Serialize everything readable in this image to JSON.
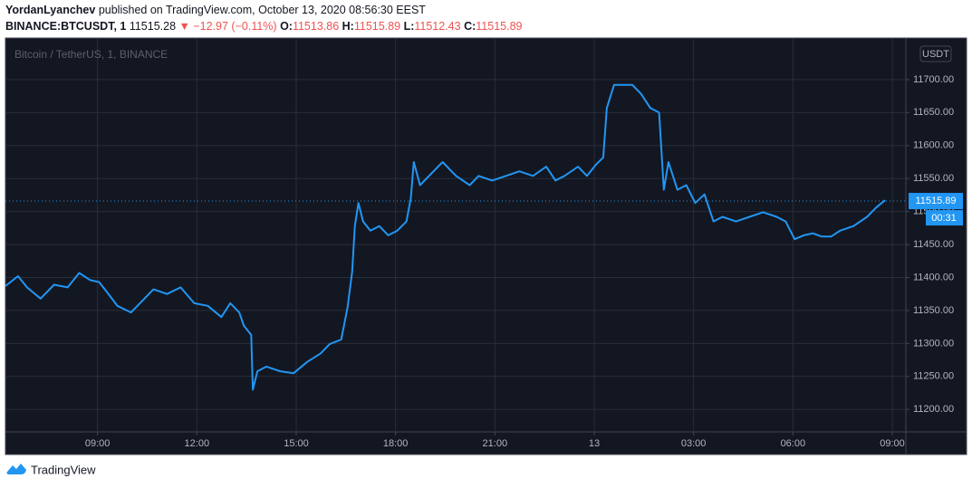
{
  "header": {
    "author": "YordanLyanchev",
    "published": "published on TradingView.com, October 13, 2020 08:56:30 EEST",
    "symbol": "BINANCE:BTCUSDT, 1",
    "price": 11515.28,
    "change": "▼ −12.97 (−0.11%)",
    "open_label": "O:",
    "open": 11513.86,
    "high_label": "H:",
    "high": 11515.89,
    "low_label": "L:",
    "low": 11512.43,
    "close_label": "C:",
    "close": 11515.89
  },
  "chart_data": {
    "type": "line",
    "legend": "Bitcoin / TetherUS, 1, BINANCE",
    "currency": "USDT",
    "x": [
      6.22,
      6.6,
      6.87,
      7.28,
      7.69,
      8.1,
      8.45,
      8.78,
      9.05,
      9.33,
      9.6,
      10.01,
      10.42,
      10.69,
      11.1,
      11.51,
      11.92,
      12.33,
      12.74,
      13.01,
      13.28,
      13.42,
      13.64,
      13.69,
      13.83,
      14.1,
      14.51,
      14.92,
      15.33,
      15.74,
      16.01,
      16.36,
      16.55,
      16.69,
      16.77,
      16.88,
      17.02,
      17.24,
      17.51,
      17.78,
      18.05,
      18.33,
      18.46,
      18.55,
      18.74,
      19.01,
      19.42,
      19.83,
      20.24,
      20.51,
      20.92,
      21.33,
      21.74,
      22.15,
      22.55,
      22.83,
      23.1,
      23.51,
      23.78,
      24.05,
      24.27,
      24.38,
      24.6,
      24.87,
      25.15,
      25.42,
      25.69,
      25.96,
      26.1,
      26.24,
      26.51,
      26.78,
      27.05,
      27.33,
      27.6,
      27.87,
      28.28,
      28.69,
      29.1,
      29.51,
      29.78,
      30.05,
      30.33,
      30.6,
      30.87,
      31.15,
      31.42,
      31.83,
      32.24,
      32.51,
      32.78
    ],
    "series": [
      {
        "name": "BTCUSDT",
        "color": "#2196f3",
        "values": [
          11387,
          11402,
          11385,
          11368,
          11389,
          11385,
          11407,
          11396,
          11393,
          11375,
          11357,
          11347,
          11368,
          11382,
          11375,
          11385,
          11361,
          11357,
          11340,
          11361,
          11347,
          11327,
          11313,
          11230,
          11258,
          11265,
          11258,
          11255,
          11272,
          11285,
          11299,
          11306,
          11354,
          11409,
          11478,
          11513,
          11485,
          11471,
          11478,
          11464,
          11471,
          11485,
          11520,
          11575,
          11540,
          11554,
          11575,
          11554,
          11540,
          11554,
          11547,
          11554,
          11561,
          11554,
          11568,
          11547,
          11554,
          11568,
          11554,
          11571,
          11582,
          11657,
          11692,
          11692,
          11692,
          11678,
          11657,
          11650,
          11533,
          11575,
          11533,
          11540,
          11513,
          11526,
          11485,
          11492,
          11485,
          11492,
          11499,
          11492,
          11485,
          11458,
          11464,
          11467,
          11462,
          11462,
          11471,
          11478,
          11492,
          11506,
          11517
        ]
      }
    ],
    "xlim": [
      6.22,
      33.41
    ],
    "xticks": [
      {
        "value": 9,
        "label": "09:00"
      },
      {
        "value": 12,
        "label": "12:00"
      },
      {
        "value": 15,
        "label": "15:00"
      },
      {
        "value": 18,
        "label": "18:00"
      },
      {
        "value": 21,
        "label": "21:00"
      },
      {
        "value": 24,
        "label": "13"
      },
      {
        "value": 27,
        "label": "03:00"
      },
      {
        "value": 30,
        "label": "06:00"
      },
      {
        "value": 33,
        "label": "09:00"
      }
    ],
    "ylim": [
      11166,
      11763
    ],
    "yticks": [
      {
        "value": 11200,
        "label": "11200.00"
      },
      {
        "value": 11250,
        "label": "11250.00"
      },
      {
        "value": 11300,
        "label": "11300.00"
      },
      {
        "value": 11350,
        "label": "11350.00"
      },
      {
        "value": 11400,
        "label": "11400.00"
      },
      {
        "value": 11450,
        "label": "11450.00"
      },
      {
        "value": 11500,
        "label": "11500.00"
      },
      {
        "value": 11550,
        "label": "11550.00"
      },
      {
        "value": 11600,
        "label": "11600.00"
      },
      {
        "value": 11650,
        "label": "11650.00"
      },
      {
        "value": 11700,
        "label": "11700.00"
      }
    ],
    "last_price": 11515.89,
    "countdown": "00:31",
    "grid": true,
    "line_width": 2
  },
  "footer": {
    "brand": "TradingView"
  }
}
